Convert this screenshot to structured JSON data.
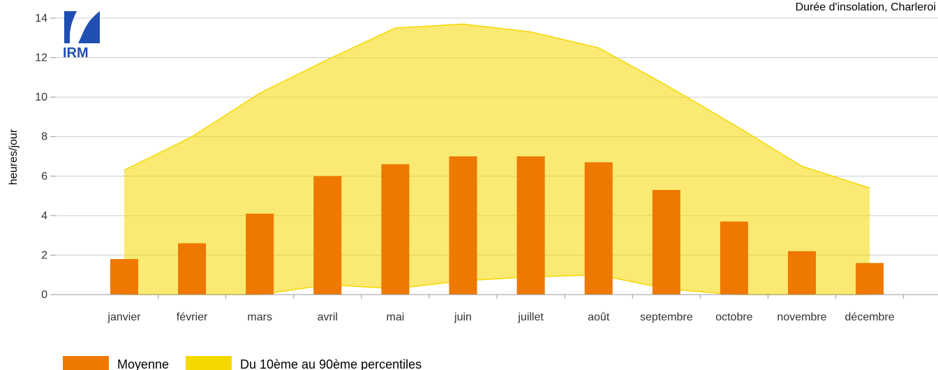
{
  "chart_data": {
    "type": "bar",
    "title": "Durée d'insolation, Charleroi",
    "ylabel": "heures/jour",
    "xlabel": "",
    "ylim": [
      0,
      14
    ],
    "yticks": [
      0,
      2,
      4,
      6,
      8,
      10,
      12,
      14
    ],
    "grid": true,
    "categories": [
      "janvier",
      "février",
      "mars",
      "avril",
      "mai",
      "juin",
      "juillet",
      "août",
      "septembre",
      "octobre",
      "novembre",
      "décembre"
    ],
    "series": [
      {
        "name": "Moyenne",
        "kind": "bar",
        "color": "#ee7800",
        "values": [
          1.8,
          2.6,
          4.1,
          6.0,
          6.6,
          7.0,
          7.0,
          6.7,
          5.3,
          3.7,
          2.2,
          1.6
        ]
      },
      {
        "name": "Du 10ème au 90ème percentiles",
        "kind": "area-range",
        "color": "#f5d800",
        "lower": [
          0.0,
          0.0,
          0.0,
          0.5,
          0.3,
          0.7,
          0.9,
          1.0,
          0.3,
          0.0,
          0.0,
          0.0
        ],
        "upper": [
          6.3,
          8.0,
          10.2,
          11.9,
          13.5,
          13.7,
          13.3,
          12.5,
          10.6,
          8.6,
          6.5,
          5.4
        ]
      }
    ],
    "legend_position": "bottom-left"
  },
  "logo": {
    "text": "IRM",
    "color": "#1f4fb3"
  }
}
